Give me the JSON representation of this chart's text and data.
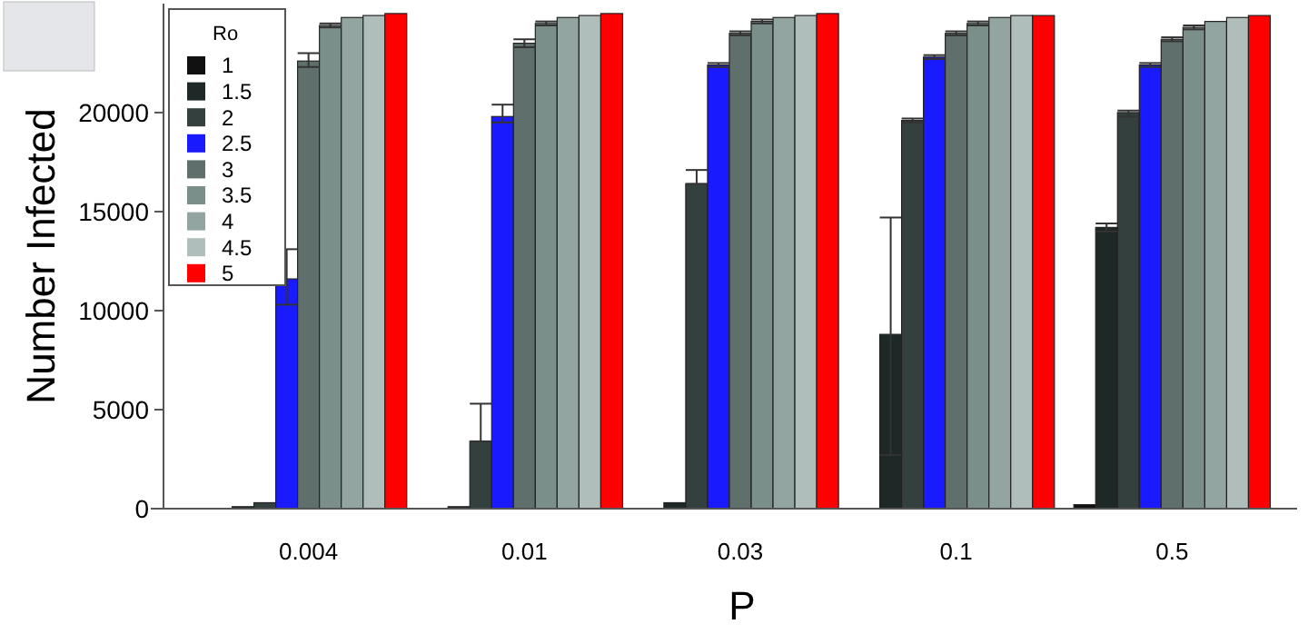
{
  "chart_data": {
    "type": "bar",
    "xlabel": "P",
    "ylabel": "Number Infected",
    "legend_title": "Ro",
    "categories": [
      "0.004",
      "0.01",
      "0.03",
      "0.1",
      "0.5"
    ],
    "ylim": [
      0,
      25500
    ],
    "yticks": [
      0,
      5000,
      10000,
      15000,
      20000
    ],
    "legend": "top left",
    "grid": false,
    "series": [
      {
        "name": "1",
        "color": "#111111",
        "values": [
          0,
          0,
          0,
          0,
          200
        ],
        "errors": [
          null,
          null,
          null,
          null,
          null
        ]
      },
      {
        "name": "1.5",
        "color": "#1e2826",
        "values": [
          100,
          100,
          300,
          8800,
          14200
        ],
        "errors": [
          null,
          null,
          null,
          [
            2700,
            14700
          ],
          [
            14000,
            14400
          ]
        ]
      },
      {
        "name": "2",
        "color": "#34403e",
        "values": [
          300,
          3400,
          16400,
          19600,
          20000
        ],
        "errors": [
          null,
          [
            3400,
            5300
          ],
          [
            16400,
            17100
          ],
          [
            19500,
            19700
          ],
          [
            19800,
            20100
          ]
        ]
      },
      {
        "name": "2.5",
        "color": "#1a1aff",
        "values": [
          11600,
          19800,
          22400,
          22800,
          22400
        ],
        "errors": [
          [
            10300,
            13100
          ],
          [
            19500,
            20400
          ],
          [
            22300,
            22500
          ],
          [
            22700,
            22900
          ],
          [
            22300,
            22500
          ]
        ]
      },
      {
        "name": "3",
        "color": "#5f706c",
        "values": [
          22600,
          23500,
          24000,
          24000,
          23700
        ],
        "errors": [
          [
            22300,
            23000
          ],
          [
            23300,
            23700
          ],
          [
            23900,
            24100
          ],
          [
            23900,
            24100
          ],
          [
            23600,
            23800
          ]
        ]
      },
      {
        "name": "3.5",
        "color": "#7a8e8a",
        "values": [
          24400,
          24500,
          24600,
          24500,
          24300
        ],
        "errors": [
          [
            24300,
            24500
          ],
          [
            24400,
            24600
          ],
          [
            24500,
            24700
          ],
          [
            24400,
            24600
          ],
          [
            24200,
            24400
          ]
        ]
      },
      {
        "name": "4",
        "color": "#93a5a1",
        "values": [
          24800,
          24800,
          24800,
          24800,
          24600
        ],
        "errors": [
          null,
          null,
          null,
          null,
          null
        ]
      },
      {
        "name": "4.5",
        "color": "#b0bebb",
        "values": [
          24900,
          24900,
          24900,
          24900,
          24800
        ],
        "errors": [
          null,
          null,
          null,
          null,
          null
        ]
      },
      {
        "name": "5",
        "color": "#ff0000",
        "values": [
          25000,
          25000,
          25000,
          24900,
          24900
        ],
        "errors": [
          null,
          null,
          null,
          null,
          null
        ]
      }
    ]
  }
}
